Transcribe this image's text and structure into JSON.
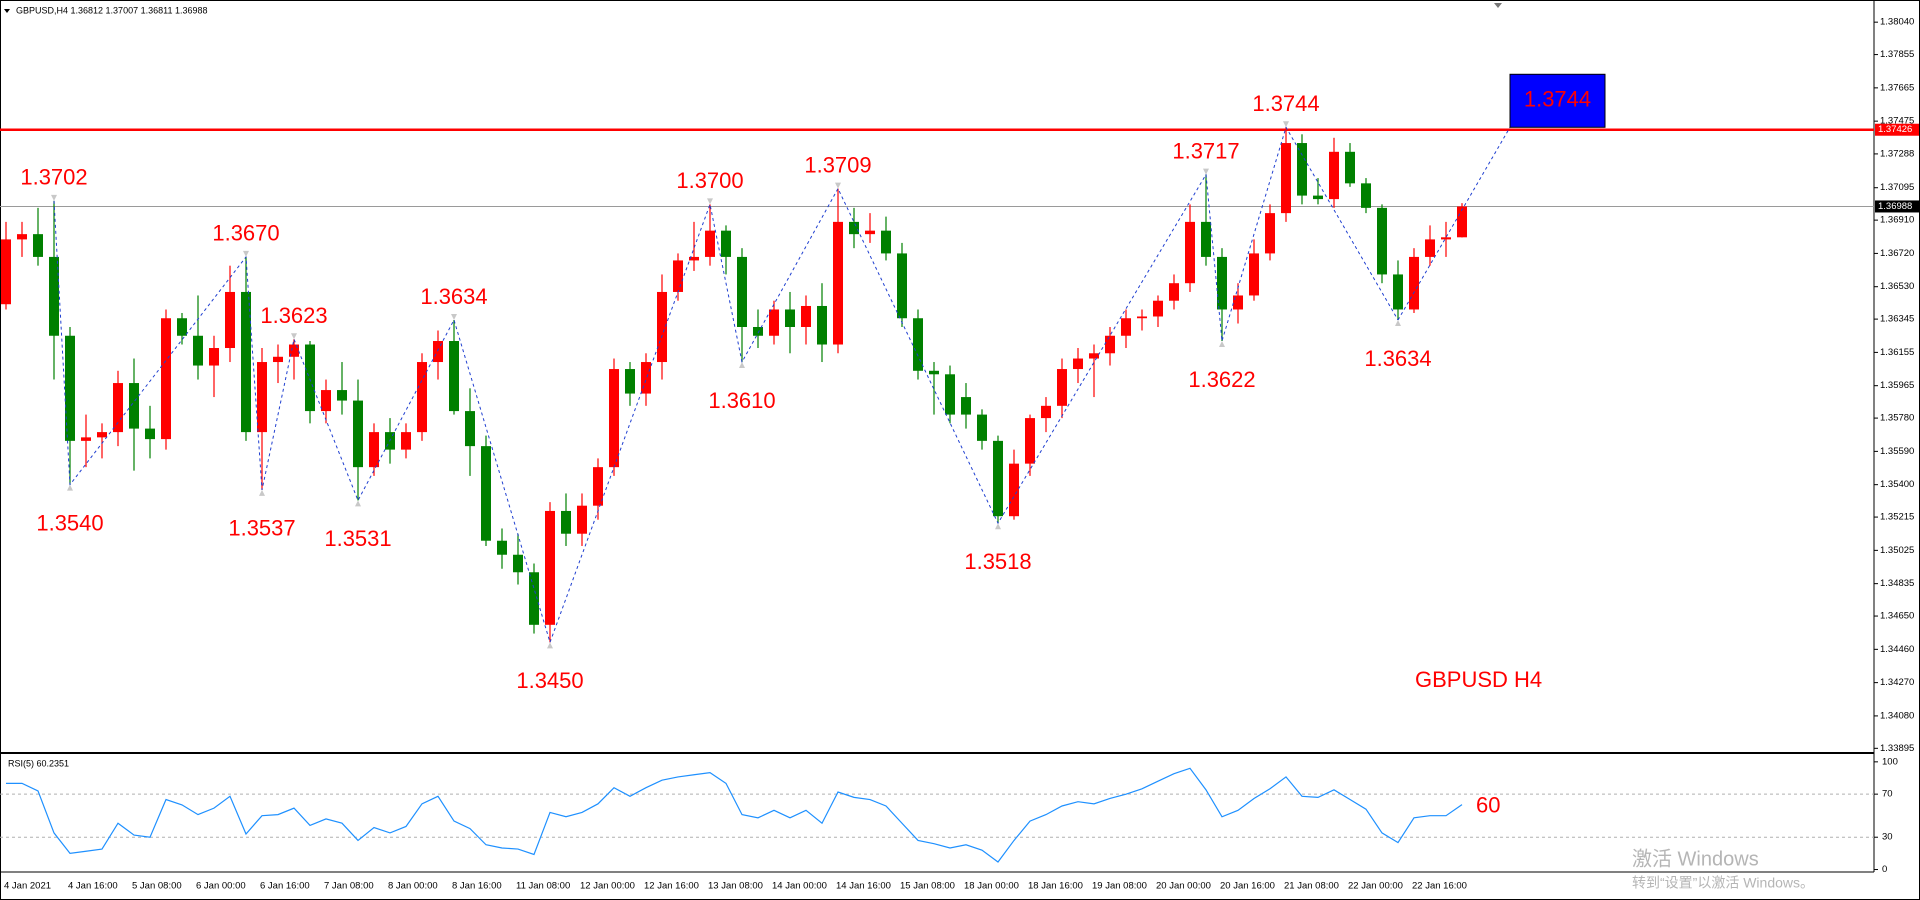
{
  "chart_data": [
    {
      "type": "candlestick",
      "title": "GBPUSD,H4 1.36812 1.37007 1.36811 1.36988",
      "annotation": "GBPUSD  H4",
      "categories": [
        "4 Jan 2021",
        null,
        null,
        null,
        "4 Jan 16:00",
        null,
        null,
        null,
        "5 Jan 08:00",
        null,
        null,
        null,
        "6 Jan 00:00",
        null,
        null,
        null,
        "6 Jan 16:00",
        null,
        null,
        null,
        "7 Jan 08:00",
        null,
        null,
        null,
        "8 Jan 00:00",
        null,
        null,
        null,
        "8 Jan 16:00",
        null,
        null,
        null,
        "11 Jan 08:00",
        null,
        null,
        null,
        "12 Jan 00:00",
        null,
        null,
        null,
        "12 Jan 16:00",
        null,
        null,
        null,
        "13 Jan 08:00",
        null,
        null,
        null,
        "14 Jan 00:00",
        null,
        null,
        null,
        "14 Jan 16:00",
        null,
        null,
        null,
        "15 Jan 08:00",
        null,
        null,
        null,
        "18 Jan 00:00",
        null,
        null,
        null,
        "18 Jan 16:00",
        null,
        null,
        null,
        "19 Jan 08:00",
        null,
        null,
        null,
        "20 Jan 00:00",
        null,
        null,
        null,
        "20 Jan 16:00",
        null,
        null,
        null,
        "21 Jan 08:00",
        null,
        null,
        null,
        "22 Jan 00:00",
        null,
        null,
        null,
        "22 Jan 16:00",
        null,
        null,
        null
      ],
      "open": [
        1.3643,
        1.368,
        1.3683,
        1.367,
        1.3625,
        1.3565,
        1.3567,
        1.357,
        1.3598,
        1.3572,
        1.3566,
        1.3635,
        1.3625,
        1.3608,
        1.3618,
        1.365,
        1.357,
        1.361,
        1.3613,
        1.362,
        1.3582,
        1.3594,
        1.3588,
        1.355,
        1.357,
        1.356,
        1.357,
        1.361,
        1.3622,
        1.3582,
        1.3562,
        1.3508,
        1.35,
        1.349,
        1.346,
        1.3525,
        1.3512,
        1.3528,
        1.355,
        1.3606,
        1.3592,
        1.361,
        1.365,
        1.3668,
        1.367,
        1.3685,
        1.367,
        1.363,
        1.3625,
        1.364,
        1.363,
        1.3642,
        1.362,
        1.369,
        1.3683,
        1.3685,
        1.3672,
        1.3635,
        1.3605,
        1.3603,
        1.359,
        1.358,
        1.3565,
        1.3522,
        1.3552,
        1.3578,
        1.3585,
        1.3606,
        1.3612,
        1.3615,
        1.3625,
        1.3635,
        1.3636,
        1.3645,
        1.3655,
        1.369,
        1.367,
        1.364,
        1.3648,
        1.3672,
        1.3695,
        1.3735,
        1.3705,
        1.3703,
        1.373,
        1.3712,
        1.3698,
        1.366,
        1.364,
        1.367,
        1.368,
        1.36812
      ],
      "high": [
        1.369,
        1.369,
        1.3698,
        1.3702,
        1.363,
        1.358,
        1.3575,
        1.3605,
        1.3612,
        1.3585,
        1.364,
        1.3638,
        1.3648,
        1.3625,
        1.3665,
        1.367,
        1.3618,
        1.362,
        1.3623,
        1.3622,
        1.36,
        1.361,
        1.36,
        1.3575,
        1.3578,
        1.3575,
        1.3615,
        1.3628,
        1.3634,
        1.3595,
        1.3568,
        1.3515,
        1.3512,
        1.3495,
        1.353,
        1.3535,
        1.3535,
        1.3555,
        1.3612,
        1.361,
        1.3615,
        1.366,
        1.3672,
        1.369,
        1.37,
        1.3688,
        1.3675,
        1.364,
        1.3645,
        1.365,
        1.3648,
        1.3655,
        1.3709,
        1.3698,
        1.3695,
        1.3693,
        1.3678,
        1.364,
        1.361,
        1.3608,
        1.3598,
        1.3583,
        1.3568,
        1.356,
        1.358,
        1.359,
        1.3612,
        1.3618,
        1.362,
        1.363,
        1.364,
        1.364,
        1.3648,
        1.366,
        1.37,
        1.3717,
        1.3675,
        1.3655,
        1.368,
        1.37,
        1.3744,
        1.374,
        1.3715,
        1.3738,
        1.3735,
        1.3715,
        1.37,
        1.3668,
        1.3675,
        1.3688,
        1.369,
        1.37007
      ],
      "low": [
        1.364,
        1.367,
        1.3665,
        1.36,
        1.354,
        1.355,
        1.3555,
        1.3562,
        1.3548,
        1.3555,
        1.356,
        1.362,
        1.36,
        1.359,
        1.361,
        1.3565,
        1.3537,
        1.3598,
        1.36,
        1.3575,
        1.3575,
        1.358,
        1.3531,
        1.3545,
        1.3552,
        1.3555,
        1.3565,
        1.36,
        1.358,
        1.3545,
        1.3505,
        1.3492,
        1.3483,
        1.3455,
        1.345,
        1.3505,
        1.3505,
        1.352,
        1.3545,
        1.3585,
        1.3585,
        1.36,
        1.3645,
        1.3662,
        1.3665,
        1.366,
        1.361,
        1.3618,
        1.362,
        1.3615,
        1.362,
        1.361,
        1.3615,
        1.3675,
        1.3678,
        1.3668,
        1.363,
        1.36,
        1.358,
        1.3575,
        1.3572,
        1.356,
        1.3518,
        1.352,
        1.3545,
        1.357,
        1.3578,
        1.3598,
        1.359,
        1.3608,
        1.3618,
        1.3628,
        1.363,
        1.364,
        1.365,
        1.3665,
        1.3622,
        1.3632,
        1.3645,
        1.3668,
        1.369,
        1.37,
        1.37,
        1.3698,
        1.371,
        1.3695,
        1.3655,
        1.3634,
        1.3638,
        1.3665,
        1.367,
        1.36811
      ],
      "close": [
        1.368,
        1.3683,
        1.367,
        1.3625,
        1.3565,
        1.3567,
        1.357,
        1.3598,
        1.3572,
        1.3566,
        1.3635,
        1.3625,
        1.3608,
        1.3618,
        1.365,
        1.357,
        1.361,
        1.3613,
        1.362,
        1.3582,
        1.3594,
        1.3588,
        1.355,
        1.357,
        1.356,
        1.357,
        1.361,
        1.3622,
        1.3582,
        1.3562,
        1.3508,
        1.35,
        1.349,
        1.346,
        1.3525,
        1.3512,
        1.3528,
        1.355,
        1.3606,
        1.3592,
        1.361,
        1.365,
        1.3668,
        1.367,
        1.3685,
        1.367,
        1.363,
        1.3625,
        1.364,
        1.363,
        1.3642,
        1.362,
        1.369,
        1.3683,
        1.3685,
        1.3672,
        1.3635,
        1.3605,
        1.3603,
        1.358,
        1.358,
        1.3565,
        1.3522,
        1.3552,
        1.3578,
        1.3585,
        1.3606,
        1.3612,
        1.3615,
        1.3625,
        1.3635,
        1.3636,
        1.3645,
        1.3655,
        1.369,
        1.367,
        1.364,
        1.3648,
        1.3672,
        1.3695,
        1.3735,
        1.3705,
        1.3703,
        1.373,
        1.3712,
        1.3698,
        1.366,
        1.364,
        1.367,
        1.368,
        1.36812,
        1.36988
      ],
      "up_color": "#ff0000",
      "down_color": "#008000",
      "ylim": [
        1.33874,
        1.38138
      ],
      "yticks": [
        {
          "value": 1.3804,
          "label": "1.38040"
        },
        1.37855,
        1.37665,
        1.37475,
        1.37288,
        1.37095,
        {
          "value": 1.3691,
          "label": "1.36910"
        },
        {
          "value": 1.3672,
          "label": "1.36720"
        },
        {
          "value": 1.3653,
          "label": "1.36530"
        },
        1.36345,
        1.36155,
        1.35965,
        {
          "value": 1.3578,
          "label": "1.35780"
        },
        {
          "value": 1.3559,
          "label": "1.35590"
        },
        {
          "value": 1.354,
          "label": "1.35400"
        },
        1.35215,
        1.35025,
        1.34835,
        {
          "value": 1.3465,
          "label": "1.34650"
        },
        {
          "value": 1.3446,
          "label": "1.34460"
        },
        {
          "value": 1.3427,
          "label": "1.34270"
        },
        {
          "value": 1.3408,
          "label": "1.34080"
        },
        1.33895
      ],
      "current_price": 1.36988,
      "level": {
        "value": 1.37426,
        "color": "#ff0000"
      },
      "zigzag": {
        "color": "#1f3fd0",
        "x": [
          3,
          4,
          15,
          16,
          18,
          22,
          28,
          34,
          44,
          46,
          52,
          62,
          75,
          76,
          80,
          87
        ],
        "values": [
          1.3702,
          1.354,
          1.367,
          1.3537,
          1.3623,
          1.3531,
          1.3634,
          1.345,
          1.37,
          1.361,
          1.3709,
          1.3518,
          1.3717,
          1.3622,
          1.3744,
          1.3634
        ],
        "value_labels": [
          "1.3702",
          "1.3540",
          "1.3670",
          "1.3537",
          "1.3623",
          "1.3531",
          "1.3634",
          "1.3450",
          "1.3700",
          "1.3610",
          "1.3709",
          "1.3518",
          "1.3717",
          "1.3622",
          "1.3744",
          "1.3634"
        ],
        "label_color": "#ff0000"
      },
      "target": {
        "value": 1.3744,
        "label": "1.3744",
        "color": "#0000ff"
      }
    },
    {
      "type": "line",
      "title": "RSI(5) 60.2351",
      "color": "#1e90ff",
      "values": [
        80,
        80,
        73,
        34,
        15,
        17,
        19,
        43,
        32,
        30,
        65,
        60,
        51,
        57,
        68,
        33,
        50,
        51,
        57,
        41,
        47,
        43,
        27,
        39,
        34,
        40,
        61,
        68,
        45,
        38,
        23,
        20,
        19,
        14,
        53,
        49,
        53,
        61,
        76,
        68,
        76,
        83,
        86,
        88,
        90,
        80,
        51,
        48,
        55,
        48,
        55,
        43,
        72,
        67,
        65,
        59,
        43,
        27,
        24,
        20,
        23,
        18,
        7,
        27,
        45,
        51,
        59,
        63,
        61,
        66,
        70,
        75,
        82,
        89,
        94,
        74,
        49,
        55,
        66,
        75,
        86,
        68,
        67,
        74,
        65,
        56,
        34,
        25,
        48,
        50,
        50,
        60.2351
      ],
      "end_label": 60,
      "ylim": [
        -2.3,
        104.5
      ],
      "yticks": [
        100,
        70,
        30,
        0
      ]
    }
  ],
  "watermark": [
    "激活 Windows",
    "转到“设置”以激活 Windows。"
  ]
}
